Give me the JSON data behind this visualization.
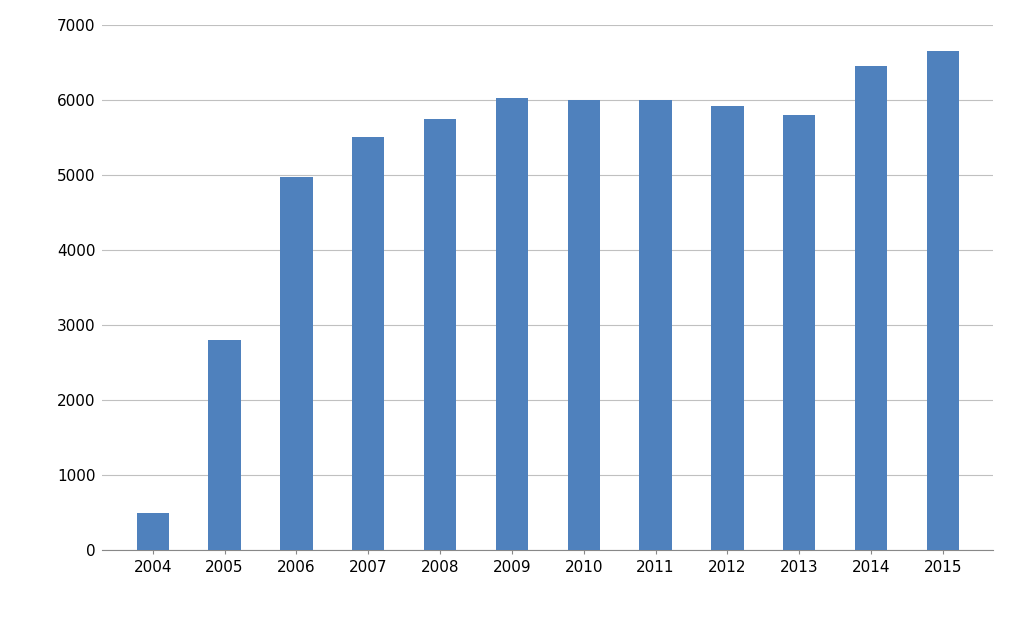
{
  "years": [
    "2004",
    "2005",
    "2006",
    "2007",
    "2008",
    "2009",
    "2010",
    "2011",
    "2012",
    "2013",
    "2014",
    "2015"
  ],
  "values": [
    500,
    2800,
    4975,
    5500,
    5750,
    6025,
    6000,
    6000,
    5925,
    5800,
    6450,
    6650
  ],
  "bar_color": "#4f81bd",
  "ylim": [
    0,
    7000
  ],
  "yticks": [
    0,
    1000,
    2000,
    3000,
    4000,
    5000,
    6000,
    7000
  ],
  "background_color": "#ffffff",
  "grid_color": "#c0c0c0",
  "bar_width": 0.45,
  "edge_color": "none",
  "tick_fontsize": 11,
  "spine_color": "#888888"
}
